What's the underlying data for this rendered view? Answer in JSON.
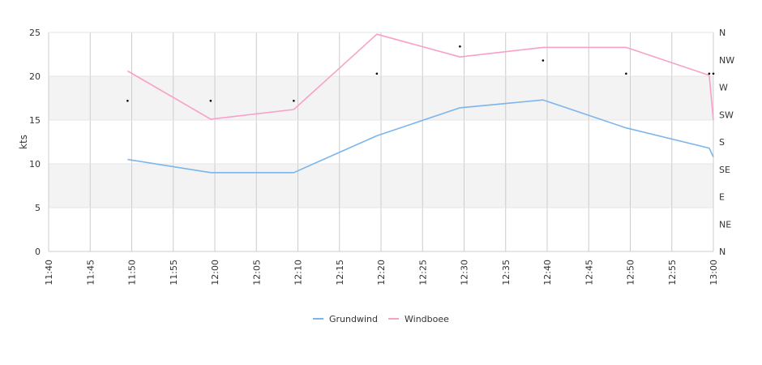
{
  "chart_data": {
    "type": "line",
    "ylabel": "kts",
    "ylim": [
      0,
      25
    ],
    "yticks": [
      "0",
      "5",
      "10",
      "15",
      "20",
      "25"
    ],
    "xlim": [
      "11:40",
      "13:00"
    ],
    "xticks": [
      "11:40",
      "11:45",
      "11:50",
      "11:55",
      "12:00",
      "12:05",
      "12:10",
      "12:15",
      "12:20",
      "12:25",
      "12:30",
      "12:35",
      "12:40",
      "12:45",
      "12:50",
      "12:55",
      "13:00"
    ],
    "direction_ticks": [
      "N",
      "NW",
      "W",
      "SW",
      "S",
      "SE",
      "E",
      "NE",
      "N"
    ],
    "bands": [
      [
        5,
        10
      ],
      [
        15,
        20
      ]
    ],
    "grid": true,
    "legend_position": "bottom",
    "series": [
      {
        "name": "Grundwind",
        "color": "#7cb5ec",
        "x": [
          "11:49:30",
          "11:59:30",
          "12:09:30",
          "12:19:30",
          "12:29:30",
          "12:39:30",
          "12:49:30",
          "12:59:30",
          "13:00"
        ],
        "values": [
          10.5,
          9.0,
          9.0,
          13.2,
          16.4,
          17.3,
          14.1,
          11.8,
          10.8
        ]
      },
      {
        "name": "Windboee",
        "color": "#f7a1c9",
        "x": [
          "11:49:30",
          "11:59:30",
          "12:09:30",
          "12:19:30",
          "12:29:30",
          "12:39:30",
          "12:49:30",
          "12:59:30",
          "13:00"
        ],
        "values": [
          20.6,
          15.1,
          16.2,
          24.8,
          22.2,
          23.3,
          23.3,
          20.1,
          15.0
        ]
      }
    ],
    "direction_points": {
      "x": [
        "11:49:30",
        "11:59:30",
        "12:09:30",
        "12:19:30",
        "12:29:30",
        "12:39:30",
        "12:49:30",
        "12:59:30",
        "13:00"
      ],
      "values": [
        17.2,
        17.2,
        17.2,
        20.3,
        23.4,
        21.8,
        20.3,
        20.3,
        20.3
      ]
    }
  }
}
